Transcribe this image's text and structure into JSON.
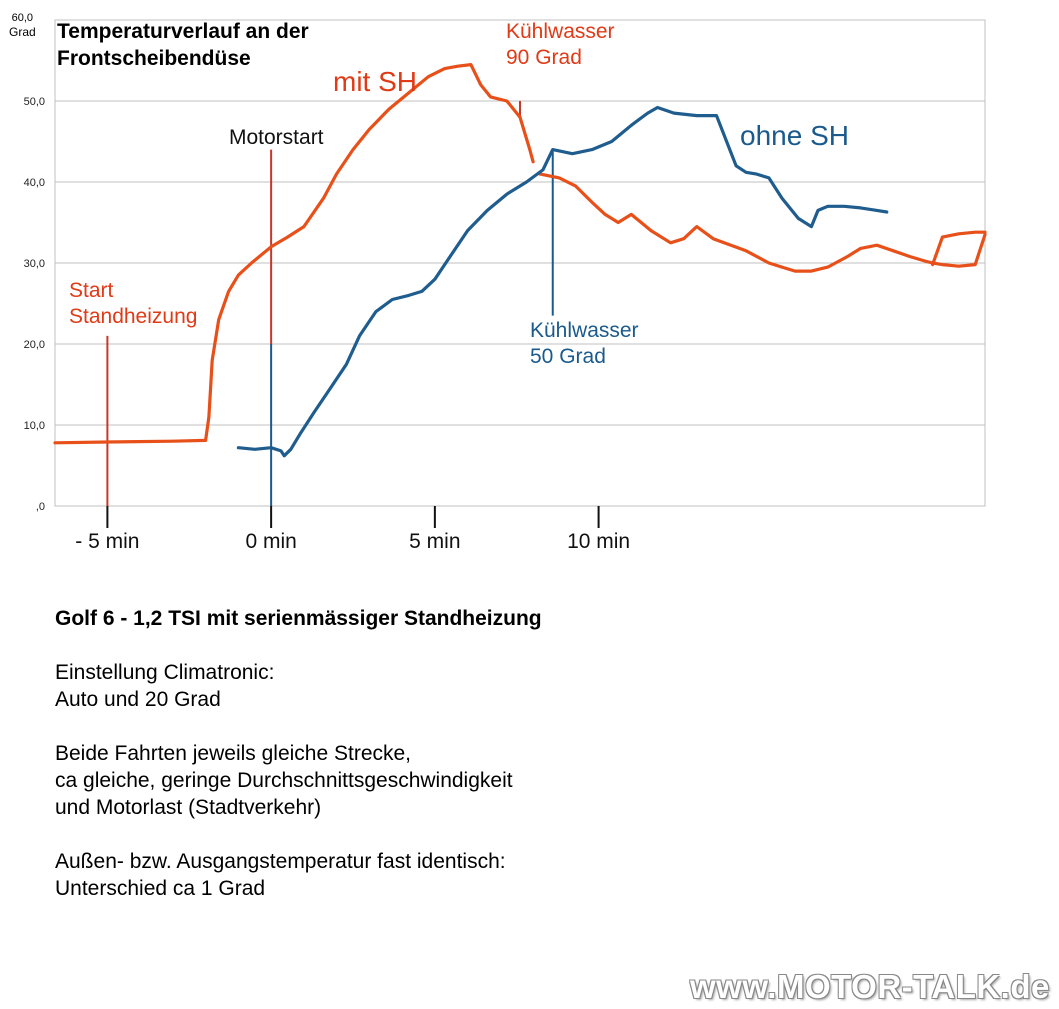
{
  "chart_data": {
    "type": "line",
    "title": "Temperaturverlauf an der Frontscheibendüse",
    "title_lines": [
      "Temperaturverlauf an der",
      "Frontscheibendüse"
    ],
    "ylabel_lines": [
      "60,0",
      "Grad"
    ],
    "ylim": [
      0,
      60
    ],
    "xlim": [
      -6.6,
      21.8
    ],
    "y_ticks": [
      {
        "value": 0,
        "label": ",0"
      },
      {
        "value": 10,
        "label": "10,0"
      },
      {
        "value": 20,
        "label": "20,0"
      },
      {
        "value": 30,
        "label": "30,0"
      },
      {
        "value": 40,
        "label": "40,0"
      },
      {
        "value": 50,
        "label": "50,0"
      }
    ],
    "x_ticks": [
      {
        "value": -5,
        "label": "- 5 min"
      },
      {
        "value": 0,
        "label": "0 min"
      },
      {
        "value": 5,
        "label": "5 min"
      },
      {
        "value": 10,
        "label": "10 min"
      }
    ],
    "grid": true,
    "series": [
      {
        "name": "mit SH",
        "color": "#e8501a",
        "x": [
          -6.6,
          -5,
          -3,
          -2,
          -1.9,
          -1.8,
          -1.6,
          -1.3,
          -1.0,
          -0.6,
          0,
          0.5,
          1.0,
          1.6,
          2.0,
          2.5,
          3.0,
          3.6,
          4.2,
          4.8,
          5.3,
          5.7,
          6.1,
          6.4,
          6.7,
          7.2,
          7.6,
          7.9,
          8.0
        ],
        "y": [
          7.8,
          7.9,
          8.0,
          8.1,
          11.0,
          18.0,
          23.0,
          26.5,
          28.5,
          30.0,
          32.0,
          33.2,
          34.5,
          38.0,
          41.0,
          44.0,
          46.5,
          49.0,
          51.0,
          53.0,
          54.0,
          54.3,
          54.5,
          52.0,
          50.5,
          50.0,
          48.0,
          44.0,
          42.5
        ]
      },
      {
        "name": "mit SH (nach Kühlwasser 90 Grad)",
        "color": "#e8501a",
        "x": [
          8.2,
          8.8,
          9.3,
          9.8,
          10.2,
          10.6,
          11.0,
          11.3,
          11.6,
          12.2,
          12.6,
          13.0,
          13.5,
          14.5,
          15.2,
          15.6,
          16.0,
          16.5,
          17.0,
          17.6,
          18.0,
          18.5,
          19.0,
          19.5,
          20.0,
          20.2,
          20.5,
          21.0,
          21.5,
          21.8
        ],
        "y": [
          41.0,
          40.5,
          39.5,
          37.5,
          36.0,
          35.0,
          36.0,
          35.0,
          34.0,
          32.5,
          33.0,
          34.5,
          33.0,
          31.5,
          30.0,
          29.5,
          29.0,
          29.0,
          29.5,
          30.8,
          31.8,
          32.2,
          31.5,
          30.8,
          30.2,
          30.0,
          29.8,
          29.6,
          29.8,
          33.5
        ]
      },
      {
        "name": "mit SH (Ende)",
        "color": "#e8501a",
        "x": [
          20.2,
          20.5,
          21.0,
          21.5,
          21.8
        ],
        "y": [
          29.8,
          33.2,
          33.6,
          33.8,
          33.8
        ]
      },
      {
        "name": "ohne SH",
        "color": "#1f5d8f",
        "x": [
          -1.0,
          -0.5,
          0,
          0.3,
          0.4,
          0.6,
          0.9,
          1.3,
          1.8,
          2.3,
          2.7,
          3.2,
          3.7,
          4.2,
          4.6,
          5.0,
          5.5,
          6.0,
          6.6,
          7.2,
          7.8,
          8.3,
          8.6,
          9.2,
          9.8,
          10.4,
          11.0,
          11.5,
          11.8,
          12.3,
          13.0,
          13.6,
          14.2,
          14.5,
          14.8,
          15.2,
          15.6,
          16.1,
          16.5,
          16.7,
          17.0,
          17.5,
          18.0,
          18.5,
          18.8
        ],
        "y": [
          7.2,
          7.0,
          7.2,
          6.8,
          6.2,
          7.0,
          9.0,
          11.5,
          14.5,
          17.5,
          21.0,
          24.0,
          25.5,
          26.0,
          26.5,
          28.0,
          31.0,
          34.0,
          36.5,
          38.5,
          40.0,
          41.5,
          44.0,
          43.5,
          44.0,
          45.0,
          47.0,
          48.5,
          49.2,
          48.5,
          48.2,
          48.2,
          42.0,
          41.2,
          41.0,
          40.5,
          38.0,
          35.5,
          34.5,
          36.5,
          37.0,
          37.0,
          36.8,
          36.5,
          36.3
        ]
      }
    ],
    "annotations": [
      {
        "id": "start-standheizung",
        "lines": [
          "Start",
          "Standheizung"
        ],
        "color": "#e03a16",
        "x": -5,
        "y_from": 0,
        "y_to": 21,
        "line_color": "#c8372a"
      },
      {
        "id": "motorstart",
        "lines": [
          "Motorstart"
        ],
        "color": "#111111",
        "x": 0,
        "y_from": 20,
        "y_to": 44,
        "line_color": "#c8372a",
        "lower_line_color": "#1a5a8c"
      },
      {
        "id": "kuehlwasser-90",
        "lines": [
          "Kühlwasser",
          "90 Grad"
        ],
        "color": "#e03a16",
        "x": 7.6,
        "y_from": 48,
        "y_to": 50,
        "line_color": "#c8372a"
      },
      {
        "id": "kuehlwasser-50",
        "lines": [
          "Kühlwasser",
          "50 Grad"
        ],
        "color": "#1a5a8c",
        "x": 8.6,
        "y_from": 23.5,
        "y_to": 44,
        "line_color": "#1a5a8c"
      }
    ],
    "series_labels": [
      {
        "text": "mit SH",
        "color": "#e03a16"
      },
      {
        "text": "ohne SH",
        "color": "#1a5a8c"
      }
    ]
  },
  "text": {
    "heading": "Golf 6 - 1,2 TSI mit serienmässiger Standheizung",
    "paragraphs": [
      [
        "Einstellung Climatronic:",
        "Auto und 20 Grad"
      ],
      [
        "Beide Fahrten jeweils gleiche Strecke,",
        "ca gleiche, geringe Durchschnittsgeschwindigkeit",
        "und Motorlast (Stadtverkehr)"
      ],
      [
        "Außen- bzw. Ausgangstemperatur fast identisch:",
        "Unterschied ca 1 Grad"
      ]
    ]
  },
  "watermark": "www.MOTOR-TALK.de"
}
